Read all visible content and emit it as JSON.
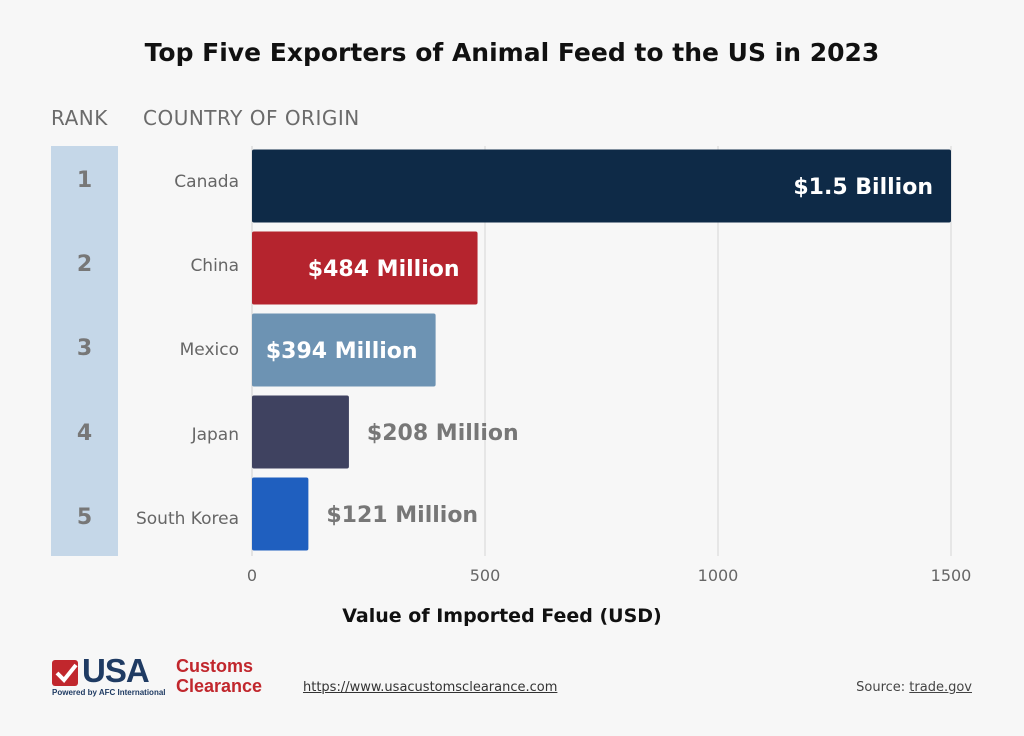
{
  "chart_data": {
    "type": "bar",
    "orientation": "horizontal",
    "title": "Top Five Exporters of Animal Feed to the US in 2023",
    "rank_header": "RANK",
    "category_header": "COUNTRY OF ORIGIN",
    "xlabel": "Value of Imported Feed (USD)",
    "xlim": [
      0,
      1500
    ],
    "xticks": [
      0,
      500,
      1000,
      1500
    ],
    "grid": "vertical",
    "bars": [
      {
        "rank": "1",
        "country": "Canada",
        "value": 1500,
        "label": "$1.5 Billion",
        "color": "#0e2a47",
        "label_inside": true
      },
      {
        "rank": "2",
        "country": "China",
        "value": 484,
        "label": "$484 Million",
        "color": "#b5242e",
        "label_inside": true
      },
      {
        "rank": "3",
        "country": "Mexico",
        "value": 394,
        "label": "$394 Million",
        "color": "#6d93b3",
        "label_inside": true
      },
      {
        "rank": "4",
        "country": "Japan",
        "value": 208,
        "label": "$208 Million",
        "color": "#3f4260",
        "label_inside": false
      },
      {
        "rank": "5",
        "country": "South Korea",
        "value": 121,
        "label": "$121 Million",
        "color": "#1f5fbf",
        "label_inside": false
      }
    ]
  },
  "footer": {
    "url": "https://www.usacustomsclearance.com",
    "source_prefix": "Source: ",
    "source_link": "trade.gov"
  },
  "logo": {
    "usa": "USA",
    "customs": "Customs",
    "clearance": "Clearance",
    "powered": "Powered by AFC International"
  },
  "colors": {
    "rank_column": "#c5d7e8",
    "outside_label": "#777777",
    "brand_red": "#c1272d",
    "brand_navy": "#1f3b63"
  }
}
